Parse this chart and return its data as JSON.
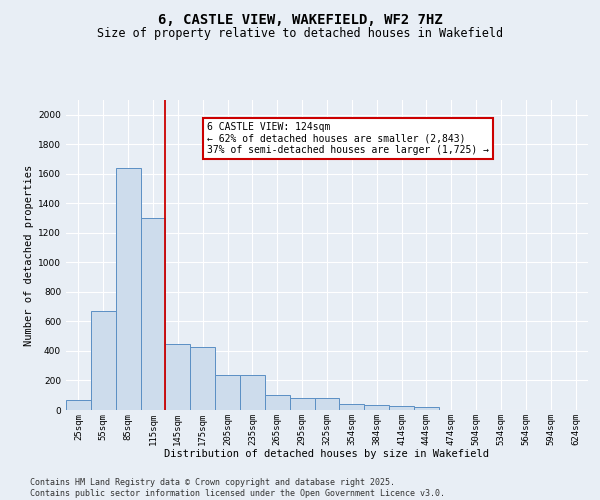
{
  "title": "6, CASTLE VIEW, WAKEFIELD, WF2 7HZ",
  "subtitle": "Size of property relative to detached houses in Wakefield",
  "xlabel": "Distribution of detached houses by size in Wakefield",
  "ylabel": "Number of detached properties",
  "footer_line1": "Contains HM Land Registry data © Crown copyright and database right 2025.",
  "footer_line2": "Contains public sector information licensed under the Open Government Licence v3.0.",
  "categories": [
    "25sqm",
    "55sqm",
    "85sqm",
    "115sqm",
    "145sqm",
    "175sqm",
    "205sqm",
    "235sqm",
    "265sqm",
    "295sqm",
    "325sqm",
    "354sqm",
    "384sqm",
    "414sqm",
    "444sqm",
    "474sqm",
    "504sqm",
    "534sqm",
    "564sqm",
    "594sqm",
    "624sqm"
  ],
  "values": [
    65,
    670,
    1640,
    1300,
    450,
    430,
    240,
    240,
    100,
    80,
    80,
    40,
    35,
    30,
    20,
    0,
    0,
    0,
    0,
    0,
    0
  ],
  "bar_color": "#cddcec",
  "bar_edge_color": "#5b8fc4",
  "annotation_text": "6 CASTLE VIEW: 124sqm\n← 62% of detached houses are smaller (2,843)\n37% of semi-detached houses are larger (1,725) →",
  "vline_x": 3.5,
  "vline_color": "#cc0000",
  "box_color": "#cc0000",
  "ylim": [
    0,
    2100
  ],
  "yticks": [
    0,
    200,
    400,
    600,
    800,
    1000,
    1200,
    1400,
    1600,
    1800,
    2000
  ],
  "bg_color": "#e8eef5",
  "plot_bg_color": "#e8eef5",
  "grid_color": "#ffffff",
  "title_fontsize": 10,
  "subtitle_fontsize": 8.5,
  "axis_label_fontsize": 7.5,
  "tick_fontsize": 6.5,
  "annotation_fontsize": 7,
  "footer_fontsize": 6
}
